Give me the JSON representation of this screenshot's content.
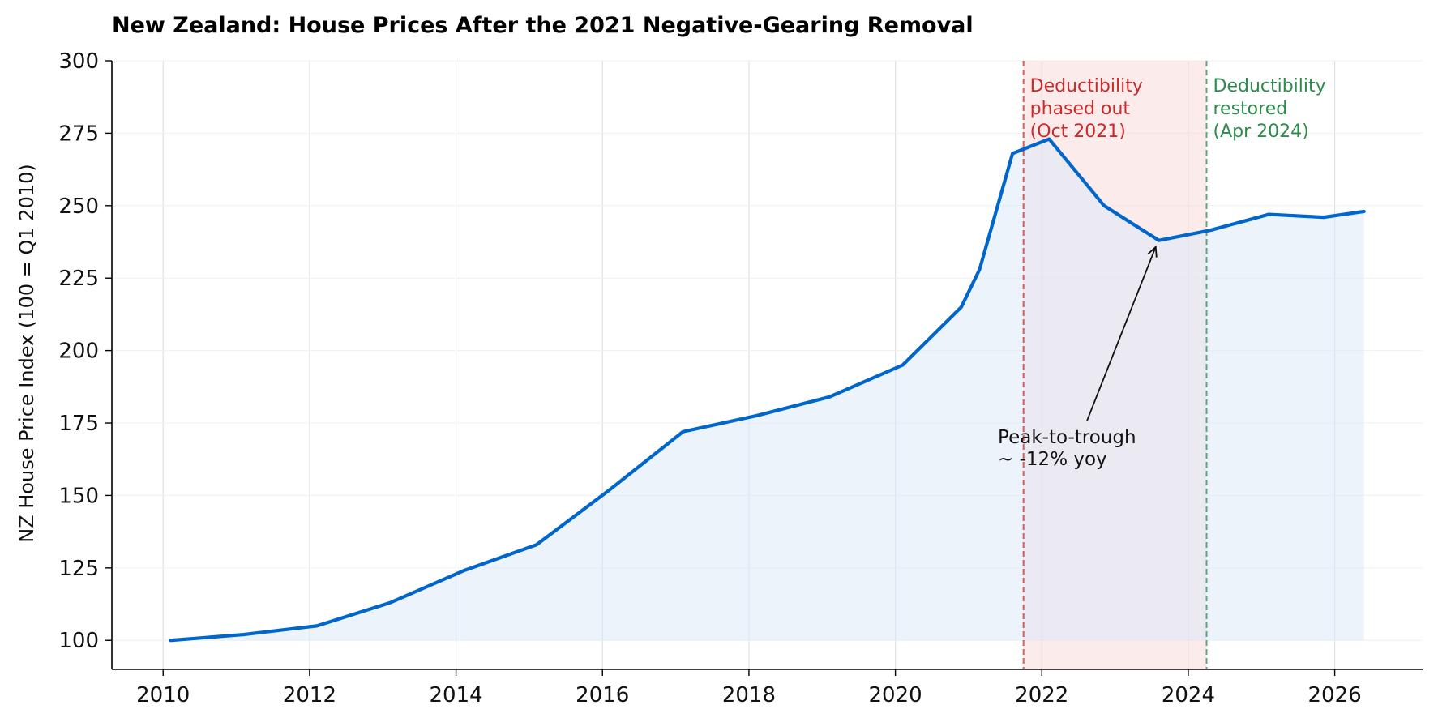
{
  "chart_data": {
    "type": "line",
    "title": "New Zealand: House Prices After the 2021 Negative-Gearing Removal",
    "xlabel": "",
    "ylabel": "NZ House Price Index (100 = Q1 2010)",
    "xlim": [
      2009.3,
      2027.2
    ],
    "ylim": [
      90,
      300
    ],
    "x_ticks": [
      2010,
      2012,
      2014,
      2016,
      2018,
      2020,
      2022,
      2024,
      2026
    ],
    "y_ticks": [
      100,
      125,
      150,
      175,
      200,
      225,
      250,
      275,
      300
    ],
    "grid": "vertical-on, horizontal-faint",
    "series": [
      {
        "color": "#0066cc",
        "fill_color": "#dce9f8",
        "points": [
          [
            2010.1,
            100
          ],
          [
            2011.1,
            102
          ],
          [
            2012.1,
            105
          ],
          [
            2013.1,
            113
          ],
          [
            2014.1,
            124
          ],
          [
            2015.1,
            133
          ],
          [
            2016.1,
            152
          ],
          [
            2017.1,
            172
          ],
          [
            2018.1,
            177.5
          ],
          [
            2019.1,
            184
          ],
          [
            2020.1,
            195
          ],
          [
            2020.9,
            215
          ],
          [
            2021.15,
            228
          ],
          [
            2021.6,
            268
          ],
          [
            2022.1,
            273
          ],
          [
            2022.85,
            250
          ],
          [
            2023.6,
            238
          ],
          [
            2024.3,
            241.5
          ],
          [
            2025.1,
            247
          ],
          [
            2025.85,
            246
          ],
          [
            2026.4,
            248
          ]
        ]
      }
    ],
    "shaded_region": {
      "x_start": 2021.75,
      "x_end": 2024.25,
      "color": "#f9dada"
    },
    "annotations": [
      {
        "id": "phase-out",
        "x": 2021.75,
        "lines": [
          "Deductibility",
          "phased out",
          "(Oct 2021)"
        ],
        "color": "#cc2a2a"
      },
      {
        "id": "restored",
        "x": 2024.25,
        "lines": [
          "Deductibility",
          "restored",
          "(Apr 2024)"
        ],
        "color": "#2e8b4e"
      }
    ],
    "arrow_annotation": {
      "lines": [
        "Peak-to-trough",
        "~ -12% yoy"
      ],
      "text_at": [
        2021.4,
        168
      ],
      "points_to": [
        2023.6,
        238
      ]
    }
  }
}
